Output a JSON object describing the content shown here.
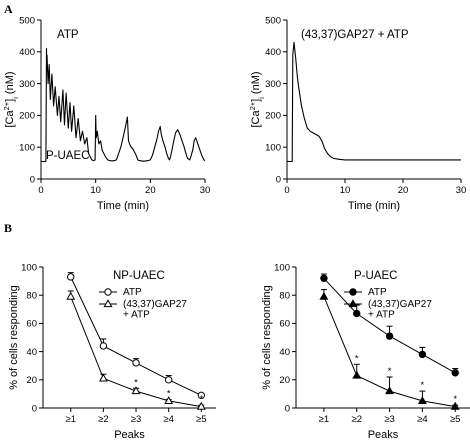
{
  "panel_labels": {
    "a": "A",
    "b": "B"
  },
  "chart_data": [
    {
      "id": "trace_atp",
      "type": "line",
      "label_top": "ATP",
      "label_bottom": "P-UAEC",
      "xlabel": "Time (min)",
      "ylabel": "[Ca2+]i (nM)",
      "ylabel_parts": [
        "[Ca",
        "2+",
        "]",
        "i",
        " (nM)"
      ],
      "xlim": [
        0,
        30
      ],
      "ylim": [
        0,
        500
      ],
      "xticks": [
        0,
        10,
        20,
        30
      ],
      "yticks": [
        0,
        100,
        200,
        300,
        400,
        500
      ],
      "grid": false,
      "baseline": 55,
      "series": [
        {
          "x": [
            0,
            0.9,
            1.0,
            1.05,
            1.1,
            1.3,
            1.5,
            1.7,
            2.0,
            2.3,
            2.6,
            3.0,
            3.3,
            3.6,
            4.0,
            4.3,
            4.6,
            5.0,
            5.3,
            5.6,
            6.0,
            6.4,
            6.8,
            7.2,
            7.6,
            8.0,
            8.4,
            8.7,
            9.0,
            9.3,
            9.6,
            9.9,
            10.0,
            10.1,
            10.3,
            10.6,
            10.9,
            11.2,
            11.5,
            11.8,
            12.2,
            12.6,
            13.0,
            13.4,
            13.8,
            14.2,
            14.6,
            15.0,
            15.4,
            15.8,
            15.9,
            16.0,
            16.2,
            16.5,
            16.8,
            17.1,
            17.4,
            17.7,
            18.0,
            18.4,
            18.8,
            19.2,
            19.6,
            20.0,
            20.4,
            20.8,
            21.2,
            21.5,
            21.8,
            22.0,
            22.3,
            22.7,
            23.0,
            23.3,
            23.5,
            23.7,
            24.0,
            24.3,
            24.6,
            25.0,
            25.4,
            25.8,
            26.2,
            26.5,
            26.8,
            27.2,
            27.5,
            27.8,
            28.0,
            28.3,
            28.6,
            29.0,
            29.4,
            29.8,
            30.0
          ],
          "y": [
            55,
            55,
            410,
            340,
            390,
            300,
            360,
            250,
            330,
            230,
            290,
            200,
            260,
            180,
            280,
            170,
            270,
            160,
            240,
            150,
            230,
            130,
            190,
            120,
            150,
            110,
            130,
            80,
            70,
            60,
            58,
            60,
            200,
            130,
            150,
            110,
            120,
            90,
            80,
            70,
            60,
            58,
            57,
            58,
            60,
            80,
            100,
            130,
            160,
            195,
            160,
            120,
            110,
            100,
            95,
            85,
            75,
            60,
            58,
            57,
            56,
            57,
            58,
            60,
            75,
            100,
            125,
            150,
            165,
            140,
            120,
            100,
            80,
            65,
            60,
            70,
            95,
            120,
            145,
            155,
            140,
            120,
            100,
            80,
            65,
            60,
            75,
            95,
            120,
            130,
            115,
            95,
            75,
            60,
            58
          ]
        }
      ]
    },
    {
      "id": "trace_gap27",
      "type": "line",
      "label_top": "(43,37)GAP27 + ATP",
      "xlabel": "Time (min)",
      "ylabel": "[Ca2+]i (nM)",
      "ylabel_parts": [
        "[Ca",
        "2+",
        "]",
        "i",
        " (nM)"
      ],
      "xlim": [
        0,
        30
      ],
      "ylim": [
        0,
        500
      ],
      "xticks": [
        0,
        10,
        20,
        30
      ],
      "yticks": [
        0,
        100,
        200,
        300,
        400,
        500
      ],
      "grid": false,
      "series": [
        {
          "x": [
            0,
            0.9,
            1.0,
            1.2,
            1.5,
            1.8,
            2.0,
            2.5,
            3.0,
            3.5,
            4.0,
            4.5,
            5.0,
            5.5,
            6.0,
            6.5,
            7.0,
            7.5,
            8.0,
            9.0,
            10.0,
            12.0,
            14.0,
            16.0,
            18.0,
            20.0,
            22.0,
            24.0,
            26.0,
            28.0,
            30.0
          ],
          "y": [
            55,
            55,
            390,
            430,
            380,
            320,
            290,
            230,
            190,
            160,
            150,
            145,
            140,
            135,
            120,
            95,
            80,
            70,
            65,
            62,
            60,
            60,
            60,
            60,
            60,
            60,
            60,
            60,
            60,
            60,
            60
          ]
        }
      ]
    },
    {
      "id": "np_uaec",
      "type": "line",
      "title": "NP-UAEC",
      "xlabel": "Peaks",
      "ylabel": "% of cells responding",
      "categories": [
        "≥1",
        "≥2",
        "≥3",
        "≥4",
        "≥5"
      ],
      "ylim": [
        0,
        100
      ],
      "yticks": [
        0,
        20,
        40,
        60,
        80,
        100
      ],
      "grid": false,
      "legend_position": "top-right",
      "series": [
        {
          "name": "ATP",
          "marker": "open-circle",
          "values": [
            93,
            44,
            32,
            20,
            9
          ],
          "errors": [
            3,
            5,
            3,
            3,
            1
          ],
          "sig": [
            false,
            false,
            false,
            false,
            false
          ]
        },
        {
          "name": "(43,37)GAP27 + ATP",
          "legend_lines": [
            "(43,37)GAP27",
            "+ ATP"
          ],
          "marker": "open-triangle",
          "values": [
            79,
            21,
            12,
            5,
            1
          ],
          "errors": [
            4,
            3,
            2,
            1,
            1
          ],
          "sig": [
            false,
            false,
            true,
            true,
            true
          ]
        }
      ]
    },
    {
      "id": "p_uaec",
      "type": "line",
      "title": "P-UAEC",
      "xlabel": "Peaks",
      "ylabel": "% of cells responding",
      "categories": [
        "≥1",
        "≥2",
        "≥3",
        "≥4",
        "≥5"
      ],
      "ylim": [
        0,
        100
      ],
      "yticks": [
        0,
        20,
        40,
        60,
        80,
        100
      ],
      "grid": false,
      "legend_position": "top-right",
      "series": [
        {
          "name": "ATP",
          "marker": "filled-circle",
          "values": [
            92,
            67,
            51,
            38,
            25
          ],
          "errors": [
            3,
            6,
            7,
            5,
            3
          ],
          "sig": [
            false,
            false,
            false,
            false,
            false
          ]
        },
        {
          "name": "(43,37)GAP27 + ATP",
          "legend_lines": [
            "(43,37)GAP27",
            "+ ATP"
          ],
          "marker": "filled-triangle",
          "values": [
            79,
            23,
            12,
            5,
            1
          ],
          "errors": [
            5,
            8,
            10,
            7,
            1
          ],
          "sig": [
            false,
            true,
            true,
            true,
            true
          ]
        }
      ]
    }
  ],
  "significance_symbol": "*"
}
